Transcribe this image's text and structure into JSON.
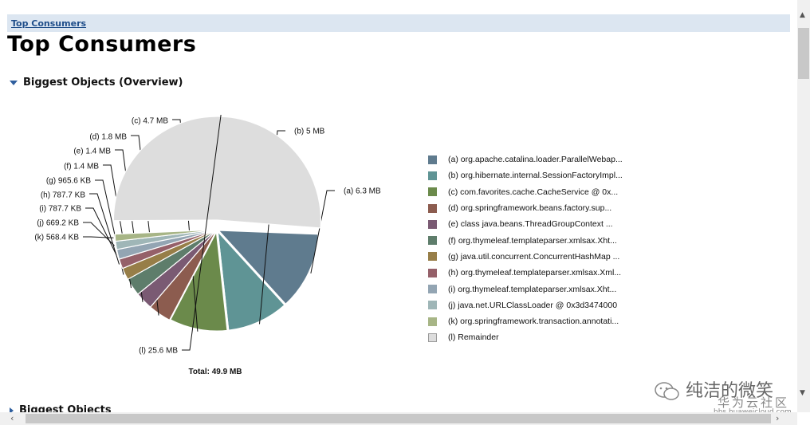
{
  "breadcrumb": {
    "label": "Top Consumers"
  },
  "page_title": "Top Consumers",
  "sections": {
    "overview": {
      "title": "Biggest Objects (Overview)",
      "expanded": true
    },
    "objects": {
      "title": "Biggest Objects",
      "expanded": false
    }
  },
  "chart_data": {
    "type": "pie",
    "total_label": "Total: 49.9 MB",
    "total_mb": 49.9,
    "slices": [
      {
        "id": "a",
        "size_label": "6.3 MB",
        "value_mb": 6.3,
        "legend": "org.apache.catalina.loader.ParallelWebap...",
        "color": "#5f7b8e"
      },
      {
        "id": "b",
        "size_label": "5 MB",
        "value_mb": 5.0,
        "legend": "org.hibernate.internal.SessionFactoryImpl...",
        "color": "#5f9495"
      },
      {
        "id": "c",
        "size_label": "4.7 MB",
        "value_mb": 4.7,
        "legend": "com.favorites.cache.CacheService @ 0x...",
        "color": "#6b8a4b"
      },
      {
        "id": "d",
        "size_label": "1.8 MB",
        "value_mb": 1.8,
        "legend": "org.springframework.beans.factory.sup...",
        "color": "#8c5c4f"
      },
      {
        "id": "e",
        "size_label": "1.4 MB",
        "value_mb": 1.4,
        "legend": "class java.beans.ThreadGroupContext ...",
        "color": "#7a5a73"
      },
      {
        "id": "f",
        "size_label": "1.4 MB",
        "value_mb": 1.4,
        "legend": "org.thymeleaf.templateparser.xmlsax.Xht...",
        "color": "#5e7d6b"
      },
      {
        "id": "g",
        "size_label": "965.6 KB",
        "value_mb": 0.943,
        "legend": "java.util.concurrent.ConcurrentHashMap ...",
        "color": "#977e48"
      },
      {
        "id": "h",
        "size_label": "787.7 KB",
        "value_mb": 0.769,
        "legend": "org.thymeleaf.templateparser.xmlsax.Xml...",
        "color": "#956069"
      },
      {
        "id": "i",
        "size_label": "787.7 KB",
        "value_mb": 0.769,
        "legend": "org.thymeleaf.templateparser.xmlsax.Xht...",
        "color": "#93a5b3"
      },
      {
        "id": "j",
        "size_label": "669.2 KB",
        "value_mb": 0.654,
        "legend": "java.net.URLClassLoader @ 0x3d3474000",
        "color": "#9fb6b7"
      },
      {
        "id": "k",
        "size_label": "568.4 KB",
        "value_mb": 0.555,
        "legend": "org.springframework.transaction.annotati...",
        "color": "#a7b586"
      },
      {
        "id": "l",
        "size_label": "25.6 MB",
        "value_mb": 25.6,
        "legend": "Remainder",
        "color": "#dddddd"
      }
    ]
  },
  "watermark": {
    "text": "纯洁的微笑",
    "line2": "华为云社区",
    "line3": "bbs.huaweicloud.com"
  },
  "scrollbar": {
    "up": "▲",
    "down": "▼",
    "left": "‹",
    "right": "›"
  }
}
